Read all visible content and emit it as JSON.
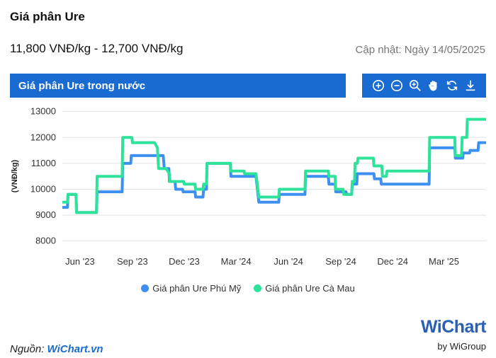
{
  "header": {
    "title": "Giá phân Ure",
    "price_range": "11,800 VNĐ/kg - 12,700 VNĐ/kg",
    "updated": "Cập nhật: Ngày 14/05/2025"
  },
  "panel": {
    "title": "Giá phân Ure trong nước"
  },
  "toolbar": {
    "icons": [
      "zoom-in-icon",
      "zoom-out-icon",
      "magnify-icon",
      "pan-hand-icon",
      "reset-icon",
      "download-icon"
    ]
  },
  "footer": {
    "source_label": "Nguồn: ",
    "source_link": "WiChart.vn",
    "brand": "WiChart",
    "brand_sub": "by WiGroup"
  },
  "colors": {
    "accent": "#1a6bd1",
    "phu_my": "#3d8ff0",
    "ca_mau": "#2ee29a"
  },
  "chart_data": {
    "type": "line",
    "ylabel": "(VNĐ/kg)",
    "ylim": [
      7800,
      13100
    ],
    "yticks": [
      8000,
      9000,
      10000,
      11000,
      12000,
      13000
    ],
    "xlim": [
      "2023-05-01",
      "2025-05-14"
    ],
    "xticks": [
      {
        "label": "Jun '23",
        "date": "2023-06-01"
      },
      {
        "label": "Sep '23",
        "date": "2023-09-01"
      },
      {
        "label": "Dec '23",
        "date": "2023-12-01"
      },
      {
        "label": "Mar '24",
        "date": "2024-03-01"
      },
      {
        "label": "Jun '24",
        "date": "2024-06-01"
      },
      {
        "label": "Sep '24",
        "date": "2024-09-01"
      },
      {
        "label": "Dec '24",
        "date": "2024-12-01"
      },
      {
        "label": "Mar '25",
        "date": "2025-03-01"
      }
    ],
    "grid": true,
    "legend_position": "bottom",
    "series": [
      {
        "name": "Giá phân Ure Phú Mỹ",
        "color": "#3d8ff0",
        "points": [
          [
            "2023-05-01",
            9300
          ],
          [
            "2023-05-10",
            9300
          ],
          [
            "2023-05-11",
            9800
          ],
          [
            "2023-05-25",
            9800
          ],
          [
            "2023-05-26",
            9100
          ],
          [
            "2023-06-30",
            9100
          ],
          [
            "2023-07-01",
            9900
          ],
          [
            "2023-08-14",
            9900
          ],
          [
            "2023-08-15",
            11000
          ],
          [
            "2023-08-29",
            11000
          ],
          [
            "2023-08-30",
            11300
          ],
          [
            "2023-10-25",
            11300
          ],
          [
            "2023-10-27",
            10800
          ],
          [
            "2023-11-04",
            10800
          ],
          [
            "2023-11-05",
            10300
          ],
          [
            "2023-11-15",
            10300
          ],
          [
            "2023-11-16",
            10000
          ],
          [
            "2023-11-28",
            10000
          ],
          [
            "2023-11-29",
            9900
          ],
          [
            "2023-12-20",
            9900
          ],
          [
            "2023-12-21",
            9700
          ],
          [
            "2024-01-03",
            9700
          ],
          [
            "2024-01-04",
            10000
          ],
          [
            "2024-01-09",
            10000
          ],
          [
            "2024-01-10",
            11000
          ],
          [
            "2024-02-20",
            11000
          ],
          [
            "2024-02-21",
            10500
          ],
          [
            "2024-04-05",
            10500
          ],
          [
            "2024-04-10",
            9500
          ],
          [
            "2024-05-15",
            9500
          ],
          [
            "2024-05-16",
            9800
          ],
          [
            "2024-06-30",
            9800
          ],
          [
            "2024-07-01",
            10500
          ],
          [
            "2024-08-10",
            10500
          ],
          [
            "2024-08-11",
            10200
          ],
          [
            "2024-08-22",
            10200
          ],
          [
            "2024-08-23",
            9900
          ],
          [
            "2024-09-10",
            9900
          ],
          [
            "2024-09-11",
            9800
          ],
          [
            "2024-09-20",
            9800
          ],
          [
            "2024-09-21",
            10200
          ],
          [
            "2024-09-29",
            10200
          ],
          [
            "2024-09-30",
            10600
          ],
          [
            "2024-10-29",
            10600
          ],
          [
            "2024-10-30",
            10400
          ],
          [
            "2024-11-10",
            10400
          ],
          [
            "2024-11-11",
            10200
          ],
          [
            "2025-02-03",
            10200
          ],
          [
            "2025-02-04",
            11600
          ],
          [
            "2025-03-20",
            11600
          ],
          [
            "2025-03-21",
            11200
          ],
          [
            "2025-04-03",
            11200
          ],
          [
            "2025-04-04",
            11400
          ],
          [
            "2025-04-15",
            11400
          ],
          [
            "2025-04-16",
            11500
          ],
          [
            "2025-04-30",
            11500
          ],
          [
            "2025-05-01",
            11800
          ],
          [
            "2025-05-14",
            11800
          ]
        ]
      },
      {
        "name": "Giá phân Ure Cà Mau",
        "color": "#2ee29a",
        "points": [
          [
            "2023-05-01",
            9500
          ],
          [
            "2023-05-10",
            9500
          ],
          [
            "2023-05-11",
            9800
          ],
          [
            "2023-05-25",
            9800
          ],
          [
            "2023-05-26",
            9100
          ],
          [
            "2023-06-30",
            9100
          ],
          [
            "2023-07-01",
            10500
          ],
          [
            "2023-08-14",
            10500
          ],
          [
            "2023-08-15",
            12000
          ],
          [
            "2023-08-31",
            12000
          ],
          [
            "2023-09-01",
            11800
          ],
          [
            "2023-10-10",
            11800
          ],
          [
            "2023-10-15",
            11600
          ],
          [
            "2023-10-17",
            10800
          ],
          [
            "2023-10-30",
            10800
          ],
          [
            "2023-11-05",
            10600
          ],
          [
            "2023-11-06",
            10300
          ],
          [
            "2023-11-30",
            10300
          ],
          [
            "2023-12-01",
            10200
          ],
          [
            "2023-12-20",
            10200
          ],
          [
            "2023-12-21",
            10000
          ],
          [
            "2024-01-03",
            10000
          ],
          [
            "2024-01-04",
            10200
          ],
          [
            "2024-01-09",
            10200
          ],
          [
            "2024-01-10",
            11000
          ],
          [
            "2024-02-20",
            11000
          ],
          [
            "2024-02-21",
            10700
          ],
          [
            "2024-03-15",
            10700
          ],
          [
            "2024-03-16",
            10600
          ],
          [
            "2024-04-05",
            10600
          ],
          [
            "2024-04-10",
            9700
          ],
          [
            "2024-05-15",
            9700
          ],
          [
            "2024-05-16",
            10000
          ],
          [
            "2024-06-30",
            10000
          ],
          [
            "2024-07-01",
            10700
          ],
          [
            "2024-08-10",
            10700
          ],
          [
            "2024-08-11",
            10500
          ],
          [
            "2024-08-22",
            10500
          ],
          [
            "2024-08-23",
            10000
          ],
          [
            "2024-09-05",
            10000
          ],
          [
            "2024-09-06",
            9800
          ],
          [
            "2024-09-20",
            9800
          ],
          [
            "2024-09-21",
            10300
          ],
          [
            "2024-09-25",
            10300
          ],
          [
            "2024-09-26",
            11000
          ],
          [
            "2024-09-30",
            11000
          ],
          [
            "2024-10-01",
            11200
          ],
          [
            "2024-10-28",
            11200
          ],
          [
            "2024-10-29",
            10900
          ],
          [
            "2024-11-12",
            10900
          ],
          [
            "2024-11-13",
            10500
          ],
          [
            "2024-11-20",
            10500
          ],
          [
            "2024-11-21",
            10700
          ],
          [
            "2025-02-03",
            10700
          ],
          [
            "2025-02-04",
            12000
          ],
          [
            "2025-03-20",
            12000
          ],
          [
            "2025-03-21",
            11300
          ],
          [
            "2025-04-01",
            11300
          ],
          [
            "2025-04-02",
            12000
          ],
          [
            "2025-04-10",
            12000
          ],
          [
            "2025-04-11",
            12700
          ],
          [
            "2025-05-14",
            12700
          ]
        ]
      }
    ]
  }
}
